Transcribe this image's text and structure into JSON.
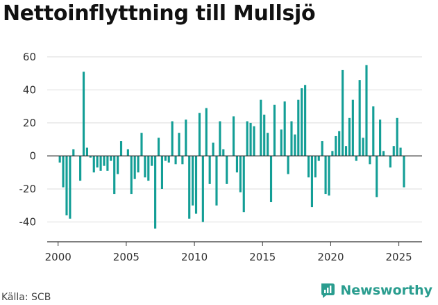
{
  "title": "Nettoinflyttning till Mullsjö",
  "source": "Källa: SCB",
  "brand": {
    "name": "Newsworthy",
    "icon": "newsworthy-logo-icon",
    "color": "#2a9d8f"
  },
  "chart_data": {
    "type": "bar",
    "title": "Nettoinflyttning till Mullsjö",
    "xlabel": "",
    "ylabel": "",
    "bar_color": "#139e96",
    "grid": true,
    "xlim": [
      1999.2,
      2026.7
    ],
    "ylim": [
      -52,
      65
    ],
    "x_ticks": [
      2000,
      2005,
      2010,
      2015,
      2020,
      2025
    ],
    "y_ticks": [
      -40,
      -20,
      0,
      20,
      40,
      60
    ],
    "bar_width": 0.16,
    "start": 2000.125,
    "step": 0.25,
    "values": [
      -4,
      -19,
      -36,
      -38,
      4,
      0,
      -15,
      51,
      5,
      -1,
      -10,
      -7,
      -9,
      -6,
      -9,
      -3,
      -23,
      -11,
      9,
      0,
      4,
      -23,
      -14,
      -10,
      14,
      -13,
      -15,
      -6,
      -44,
      11,
      -20,
      -3,
      -4,
      21,
      -5,
      14,
      -5,
      22,
      -38,
      -30,
      -35,
      26,
      -40,
      29,
      -17,
      8,
      -30,
      21,
      4,
      -17,
      0,
      24,
      -10,
      -22,
      -34,
      21,
      20,
      18,
      0,
      34,
      25,
      14,
      -28,
      31,
      0,
      16,
      33,
      -11,
      21,
      13,
      34,
      41,
      43,
      -13,
      -31,
      -13,
      -3,
      9,
      -23,
      -24,
      3,
      12,
      15,
      52,
      6,
      23,
      34,
      -3,
      46,
      11,
      55,
      -5,
      30,
      -25,
      22,
      3,
      0,
      -7,
      6,
      23,
      5,
      -19
    ]
  }
}
